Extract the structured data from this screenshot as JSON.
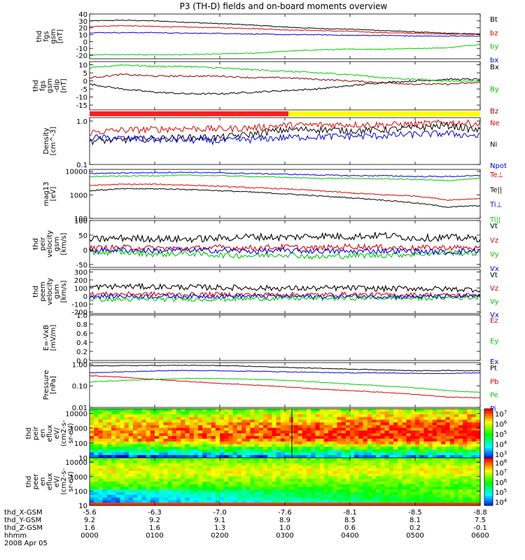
{
  "title": "P3 (TH-D) fields and on-board moments overview",
  "chart_data": {
    "type": "line",
    "title": "P3 (TH-D) fields and on-board moments overview",
    "time_ticks": [
      "0000",
      "0100",
      "0200",
      "0300",
      "0400",
      "0500",
      "0600"
    ],
    "panels": [
      {
        "kind": "line",
        "ylabel": [
          "thd",
          "fgs",
          "gsm",
          "[nT]"
        ],
        "scale": "linear",
        "ylim": [
          -25,
          40
        ],
        "yticks": [
          "40",
          "30",
          "20",
          "10",
          "0",
          "-10",
          "-20"
        ],
        "yticks_values": [
          40,
          30,
          20,
          10,
          0,
          -10,
          -20
        ],
        "series": [
          {
            "name": "Bt",
            "color": "#000000",
            "values": [
              30,
              31,
              30,
              28,
              26,
              24,
              21,
              19,
              18,
              16,
              14,
              12,
              11
            ]
          },
          {
            "name": "bz",
            "color": "#e00000",
            "values": [
              22,
              23,
              22,
              21,
              20,
              19,
              17,
              16,
              15,
              13,
              12,
              11,
              10
            ]
          },
          {
            "name": "by",
            "color": "#00cc00",
            "values": [
              -19,
              -19,
              -19,
              -19,
              -18,
              -17,
              -14,
              -12,
              -11,
              -11,
              -10,
              -9,
              -4
            ]
          },
          {
            "name": "bx",
            "color": "#0000dd",
            "values": [
              13,
              13,
              13,
              12,
              12,
              11,
              10,
              10,
              9,
              9,
              8,
              8,
              8
            ]
          }
        ]
      },
      {
        "kind": "line",
        "ylabel": [
          "thd",
          "fgs",
          "gsm",
          "-dip",
          "[nT]"
        ],
        "scale": "linear",
        "ylim": [
          -18,
          12
        ],
        "yticks": [
          "10",
          "5",
          "0",
          "-5",
          "-10",
          "-15"
        ],
        "yticks_values": [
          10,
          5,
          0,
          -5,
          -10,
          -15
        ],
        "series": [
          {
            "name": "Bx",
            "color": "#000000",
            "values": [
              -2,
              -5,
              -7,
              -8,
              -8,
              -7,
              -6,
              -5,
              -3,
              -1,
              0,
              1,
              1
            ]
          },
          {
            "name": "By",
            "color": "#00cc00",
            "values": [
              8,
              10,
              9,
              9,
              8,
              7,
              6,
              5,
              4,
              2,
              1,
              0,
              0
            ]
          },
          {
            "name": "Bz",
            "color": "#8b0000",
            "values": [
              2,
              4,
              3,
              3,
              3,
              2,
              2,
              1,
              0,
              -1,
              -2,
              -2,
              -1
            ]
          }
        ]
      },
      {
        "kind": "line",
        "ylabel": [
          "Density",
          "[cm^-3]"
        ],
        "scale": "log",
        "ylim": [
          0.1,
          1.2
        ],
        "yticks": [
          "1.0",
          "0.1"
        ],
        "yticks_values": [
          1.0,
          0.1
        ],
        "series": [
          {
            "name": "Ne",
            "color": "#e00000",
            "values": [
              0.55,
              0.62,
              0.65,
              0.68,
              0.66,
              0.7,
              0.8,
              0.82,
              0.84,
              0.82,
              0.85,
              0.92,
              0.88
            ]
          },
          {
            "name": "Ni",
            "color": "#000000",
            "values": [
              0.35,
              0.37,
              0.4,
              0.42,
              0.42,
              0.5,
              0.63,
              0.65,
              0.6,
              0.63,
              0.7,
              0.8,
              0.6
            ]
          },
          {
            "name": "Npot",
            "color": "#0000dd",
            "values": [
              0.42,
              0.4,
              0.38,
              0.37,
              0.35,
              0.38,
              0.42,
              0.44,
              0.45,
              0.46,
              0.5,
              0.52,
              0.45
            ]
          }
        ]
      },
      {
        "kind": "line",
        "ylabel": [
          "mag13",
          "[eV]"
        ],
        "scale": "log",
        "ylim": [
          100,
          12000
        ],
        "yticks": [
          "10000",
          "1000",
          "100"
        ],
        "yticks_values": [
          10000,
          1000,
          100
        ],
        "series": [
          {
            "name": "Te⊥",
            "color": "#e00000",
            "values": [
              2500,
              2800,
              2800,
              2600,
              2300,
              2000,
              1800,
              1500,
              1200,
              1000,
              900,
              600,
              700
            ]
          },
          {
            "name": "Te||",
            "color": "#000000",
            "values": [
              1500,
              1800,
              1800,
              1700,
              1500,
              1300,
              1100,
              900,
              750,
              600,
              450,
              300,
              350
            ]
          },
          {
            "name": "Ti⊥",
            "color": "#0000dd",
            "values": [
              8000,
              8500,
              8800,
              9000,
              8500,
              8000,
              7500,
              7000,
              6500,
              6500,
              6000,
              6000,
              6500
            ]
          },
          {
            "name": "Ti||",
            "color": "#00cc00",
            "values": [
              6000,
              6200,
              6500,
              6800,
              6500,
              6000,
              5500,
              5000,
              5000,
              4800,
              4500,
              4000,
              5000
            ]
          }
        ]
      },
      {
        "kind": "line",
        "ylabel": [
          "thd",
          "peir",
          "velocity",
          "gsm",
          "[km/s]"
        ],
        "scale": "linear",
        "ylim": [
          -60,
          100
        ],
        "yticks": [
          "100",
          "50",
          "0",
          "-50"
        ],
        "yticks_values": [
          100,
          50,
          0,
          -50
        ],
        "series": [
          {
            "name": "Vt",
            "color": "#000000",
            "values": [
              35,
              40,
              38,
              36,
              40,
              45,
              42,
              48,
              45,
              50,
              40,
              42,
              38
            ]
          },
          {
            "name": "Vz",
            "color": "#e00000",
            "values": [
              5,
              8,
              6,
              4,
              8,
              6,
              10,
              5,
              12,
              8,
              6,
              8,
              5
            ]
          },
          {
            "name": "Vy",
            "color": "#00cc00",
            "values": [
              -10,
              -8,
              -15,
              -12,
              -18,
              -20,
              -15,
              -25,
              -20,
              -18,
              -15,
              -10,
              -12
            ]
          },
          {
            "name": "Vx",
            "color": "#0000dd",
            "values": [
              -2,
              0,
              -3,
              -1,
              -2,
              -5,
              -3,
              -4,
              -6,
              -3,
              -5,
              -8,
              -2
            ]
          }
        ]
      },
      {
        "kind": "line",
        "ylabel": [
          "thd",
          "peem",
          "velocity",
          "gsm",
          "[km/s]"
        ],
        "scale": "linear",
        "ylim": [
          -220,
          330
        ],
        "yticks": [
          "300",
          "200",
          "100",
          "0",
          "-100",
          "-200"
        ],
        "yticks_values": [
          300,
          200,
          100,
          0,
          -100,
          -200
        ],
        "series": [
          {
            "name": "Vt",
            "color": "#000000",
            "values": [
              110,
              120,
              115,
              110,
              105,
              100,
              95,
              95,
              100,
              90,
              95,
              85,
              80
            ]
          },
          {
            "name": "Vz",
            "color": "#e00000",
            "values": [
              20,
              25,
              22,
              18,
              20,
              15,
              18,
              15,
              20,
              12,
              15,
              10,
              12
            ]
          },
          {
            "name": "Vy",
            "color": "#00cc00",
            "values": [
              -40,
              -45,
              -42,
              -38,
              -40,
              -35,
              -30,
              -30,
              -28,
              -25,
              -30,
              -22,
              -20
            ]
          },
          {
            "name": "Vx",
            "color": "#0000dd",
            "values": [
              -5,
              -3,
              -4,
              -6,
              -2,
              -5,
              -3,
              -8,
              -5,
              -6,
              -10,
              -8,
              -4
            ]
          }
        ]
      },
      {
        "kind": "line",
        "ylabel": [
          "E=-VxB",
          "[mV/m]"
        ],
        "scale": "linear",
        "ylim": [
          0,
          1
        ],
        "yticks": [
          "1.0",
          "0.8",
          "0.6",
          "0.4",
          "0.2",
          "0.0"
        ],
        "yticks_values": [
          1.0,
          0.8,
          0.6,
          0.4,
          0.2,
          0.0
        ],
        "series": [
          {
            "name": "Ez",
            "color": "#e00000",
            "values": []
          },
          {
            "name": "Ey",
            "color": "#00cc00",
            "values": []
          },
          {
            "name": "Ex",
            "color": "#0000dd",
            "values": []
          }
        ]
      },
      {
        "kind": "line",
        "ylabel": [
          "Pressure",
          "[nPa]"
        ],
        "scale": "log",
        "ylim": [
          0.01,
          1.2
        ],
        "yticks": [
          "1.00",
          "0.10",
          "0.01"
        ],
        "yticks_values": [
          1.0,
          0.1,
          0.01
        ],
        "series": [
          {
            "name": "Pt",
            "color": "#000000",
            "values": [
              0.85,
              0.87,
              0.88,
              0.9,
              0.87,
              0.8,
              0.72,
              0.65,
              0.6,
              0.55,
              0.5,
              0.52,
              0.5
            ]
          },
          {
            "name": "Pb",
            "color": "#e00000",
            "values": [
              0.3,
              0.25,
              0.2,
              0.16,
              0.13,
              0.11,
              0.09,
              0.07,
              0.06,
              0.05,
              0.04,
              0.03,
              0.028
            ]
          },
          {
            "name": "Pe",
            "color": "#00cc00",
            "values": [
              0.15,
              0.18,
              0.2,
              0.22,
              0.22,
              0.2,
              0.18,
              0.15,
              0.12,
              0.1,
              0.08,
              0.06,
              0.05
            ]
          },
          {
            "name": "Pi",
            "color": "#0000dd",
            "values": [
              0.4,
              0.45,
              0.5,
              0.52,
              0.5,
              0.48,
              0.45,
              0.42,
              0.4,
              0.4,
              0.38,
              0.38,
              0.4
            ]
          }
        ]
      },
      {
        "kind": "spectrogram",
        "ylabel": [
          "thd",
          "peir",
          "en",
          "eflux",
          "eV/",
          "(cm2-s-",
          "sr-eV)"
        ],
        "scale": "log",
        "ylim": [
          10,
          20000
        ],
        "yticks": [
          "10000",
          "1000",
          "100",
          "10"
        ],
        "yticks_values": [
          10000,
          1000,
          100,
          10
        ],
        "colorbar_ticks": [
          "10^7",
          "10^6",
          "10^5",
          "10^4",
          "10^3"
        ]
      },
      {
        "kind": "spectrogram",
        "ylabel": [
          "thd",
          "peer",
          "en",
          "eflux",
          "eV/",
          "(cm2-s-",
          "sr-eV)"
        ],
        "scale": "log",
        "ylim": [
          10,
          20000
        ],
        "yticks": [
          "10000",
          "1000",
          "100",
          "10"
        ],
        "yticks_values": [
          10000,
          1000,
          100,
          10
        ],
        "colorbar_ticks": [
          "10^8",
          "10^7",
          "10^6",
          "10^5",
          "10^4"
        ]
      }
    ],
    "footer": {
      "row_labels": [
        "thd_X-GSM",
        "thd_Y-GSM",
        "thd_Z-GSM",
        "hhmm",
        "2008 Apr 05"
      ],
      "rows": [
        [
          "-5.6",
          "-6.3",
          "-7.0",
          "-7.6",
          "-8.1",
          "-8.5",
          "-8.8"
        ],
        [
          "9.2",
          "9.2",
          "9.1",
          "8.9",
          "8.5",
          "8.1",
          "7.5"
        ],
        [
          "1.6",
          "1.6",
          "1.3",
          "1.0",
          "0.6",
          "0.2",
          "-0.1"
        ],
        [
          "0000",
          "0100",
          "0200",
          "0300",
          "0400",
          "0500",
          "0600"
        ]
      ]
    }
  }
}
